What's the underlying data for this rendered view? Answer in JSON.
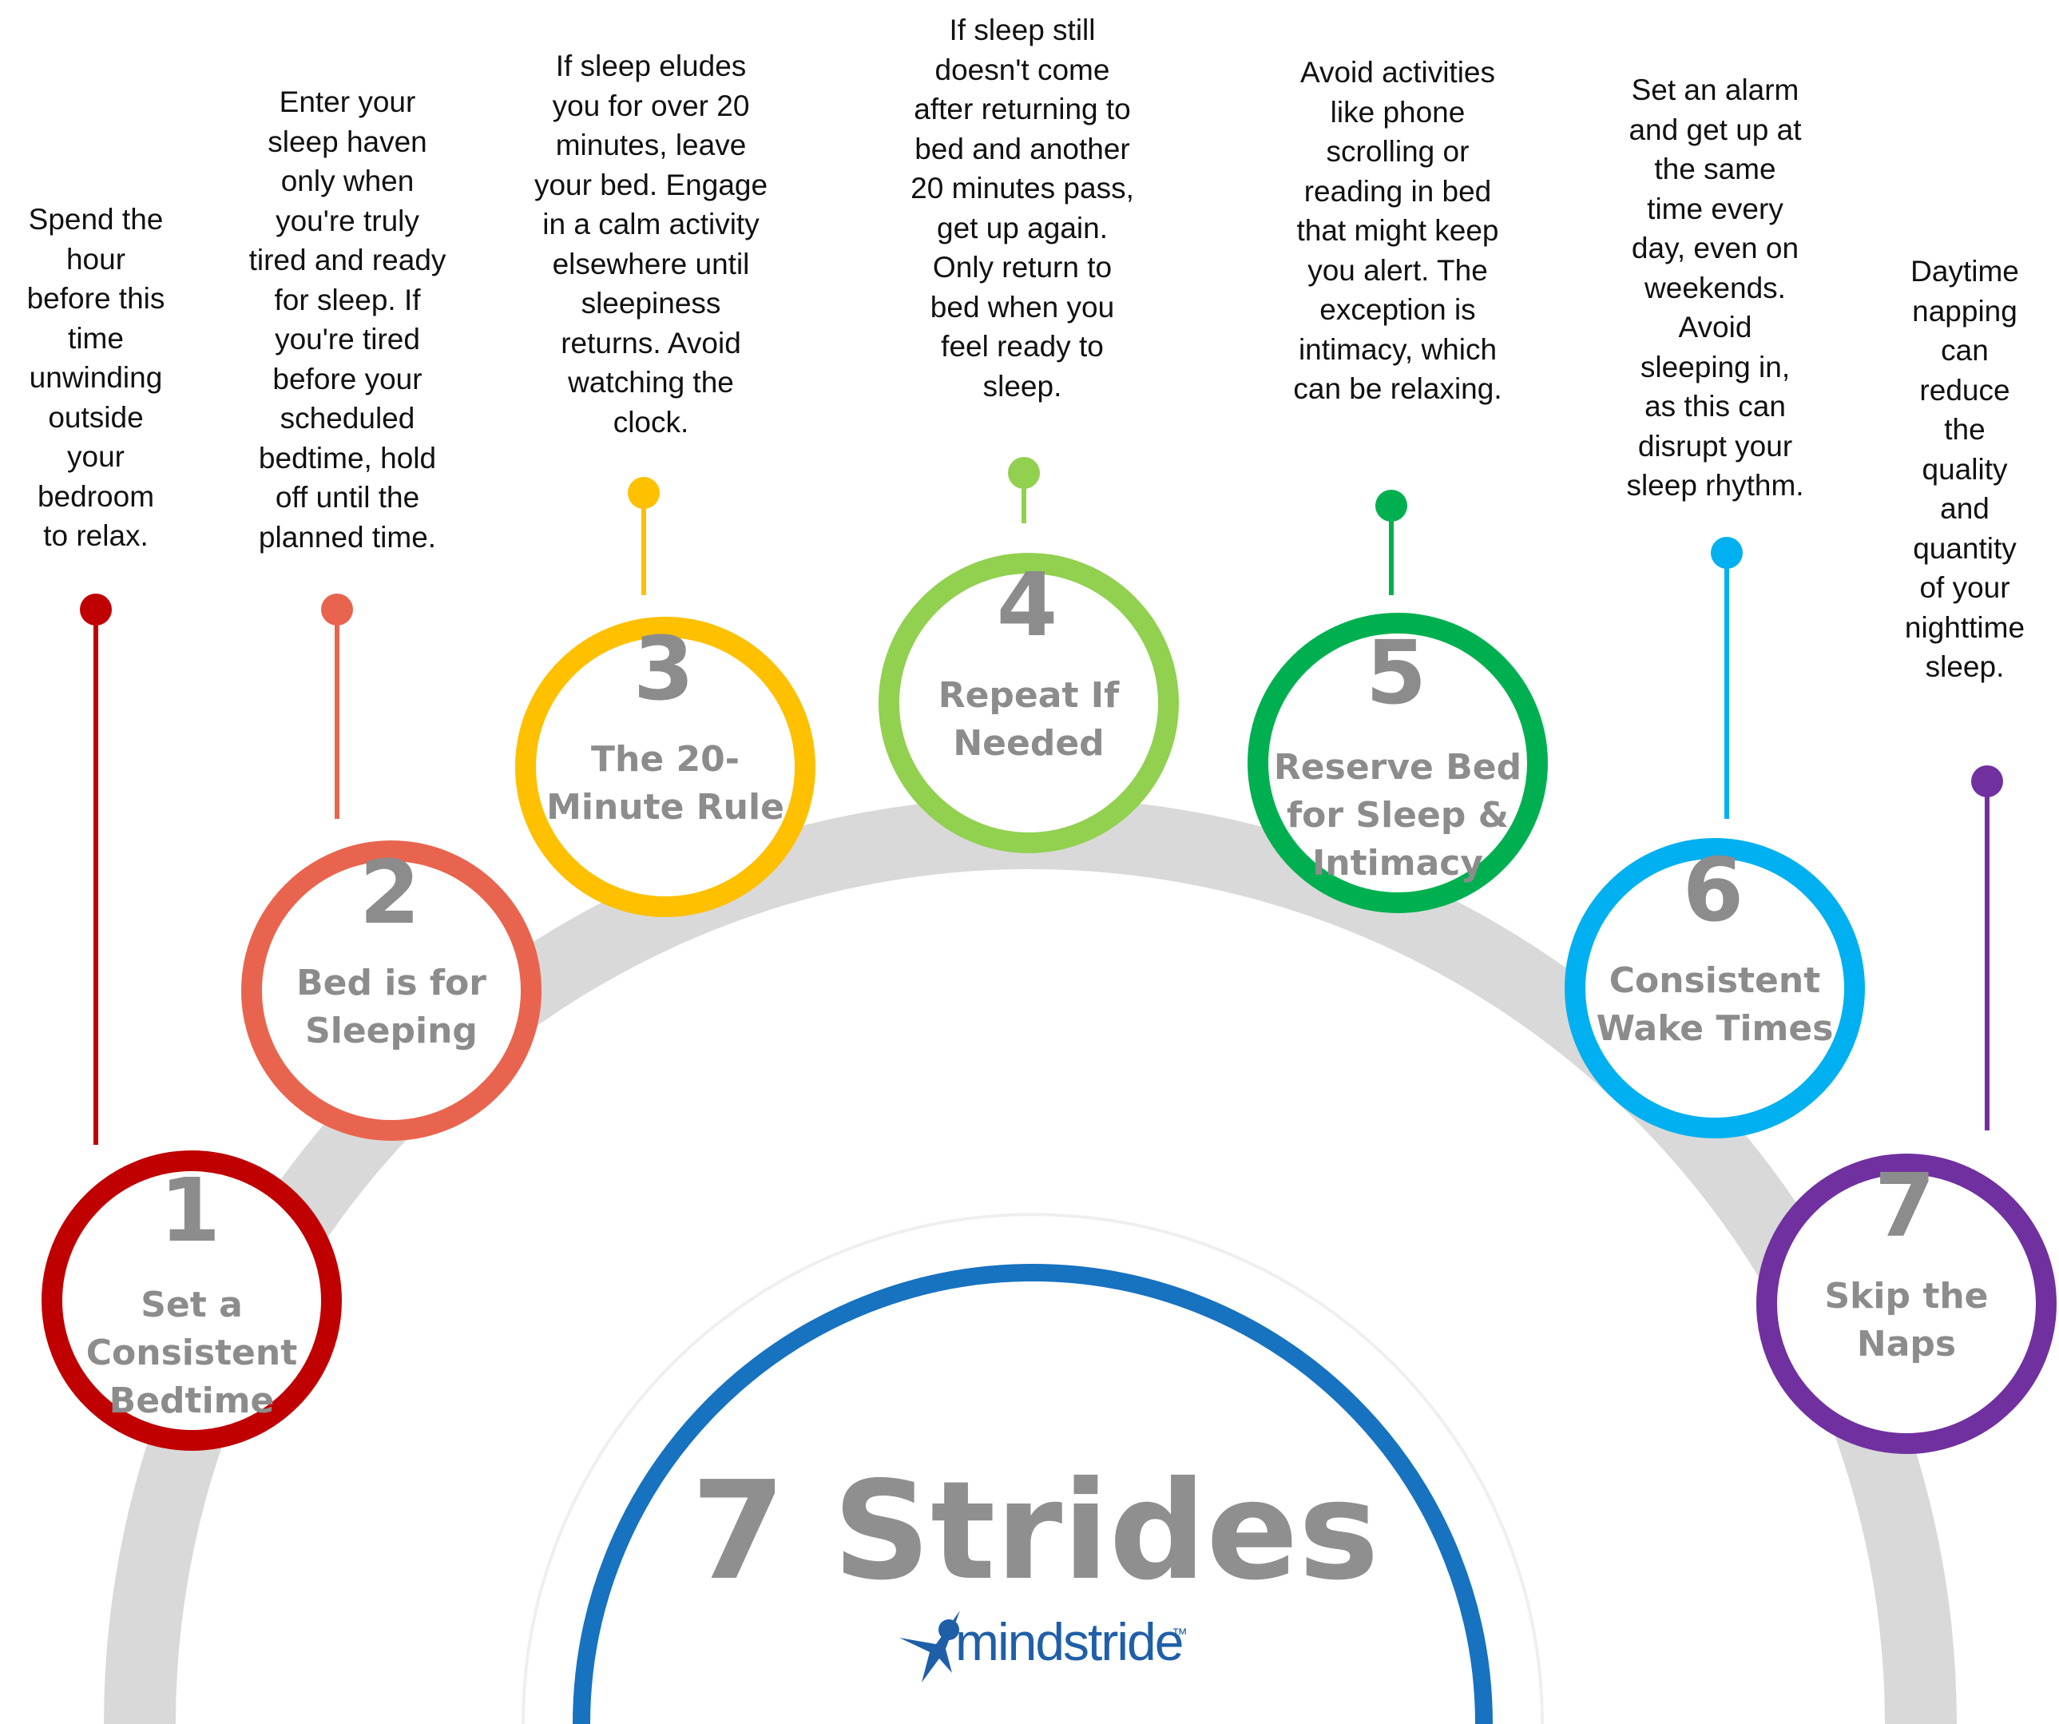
{
  "title": "7 Strides",
  "brand": {
    "name": "mindstride",
    "trademark": "™",
    "color": "#1f5fa8",
    "icon": "figure-star-icon"
  },
  "colors": {
    "arc": "#d9d9d9",
    "inner_arc": "#1772c0",
    "text": "#8c8c8c"
  },
  "steps": [
    {
      "number": "1",
      "title": [
        "Set a",
        "Consistent",
        "Bedtime"
      ],
      "color": "#c00000",
      "description": [
        "Spend the",
        "hour",
        "before this",
        "time",
        "unwinding",
        "outside",
        "your",
        "bedroom",
        "to relax."
      ]
    },
    {
      "number": "2",
      "title": [
        "Bed is for",
        "Sleeping"
      ],
      "color": "#e9644e",
      "description": [
        "Enter your",
        "sleep haven",
        "only when",
        "you're truly",
        "tired and ready",
        "for sleep. If",
        "you're tired",
        "before your",
        "scheduled",
        "bedtime, hold",
        "off until the",
        "planned time."
      ]
    },
    {
      "number": "3",
      "title": [
        "The 20-",
        "Minute Rule"
      ],
      "color": "#ffc000",
      "description": [
        "If sleep eludes",
        "you for over 20",
        "minutes, leave",
        "your bed. Engage",
        "in a calm activity",
        "elsewhere until",
        "sleepiness",
        "returns. Avoid",
        "watching the",
        "clock."
      ]
    },
    {
      "number": "4",
      "title": [
        "Repeat If",
        "Needed"
      ],
      "color": "#92d050",
      "description": [
        "If sleep still",
        "doesn't come",
        "after returning to",
        "bed and another",
        "20 minutes pass,",
        "get up again.",
        "Only return to",
        "bed when you",
        "feel ready to",
        "sleep."
      ]
    },
    {
      "number": "5",
      "title": [
        "Reserve Bed",
        "for Sleep &",
        "Intimacy"
      ],
      "color": "#00b050",
      "description": [
        "Avoid activities",
        "like phone",
        "scrolling or",
        "reading in bed",
        "that might keep",
        "you alert. The",
        "exception is",
        "intimacy, which",
        "can be relaxing."
      ]
    },
    {
      "number": "6",
      "title": [
        "Consistent",
        "Wake Times"
      ],
      "color": "#00b0f0",
      "description": [
        "Set an alarm",
        "and get up at",
        "the same",
        "time every",
        "day, even on",
        "weekends.",
        "Avoid",
        "sleeping in,",
        "as this can",
        "disrupt your",
        "sleep rhythm."
      ]
    },
    {
      "number": "7",
      "title": [
        "Skip the",
        "Naps"
      ],
      "color": "#7030a0",
      "description": [
        "Daytime",
        "napping",
        "can",
        "reduce",
        "the",
        "quality",
        "and",
        "quantity",
        "of your",
        "nighttime",
        "sleep."
      ]
    }
  ]
}
